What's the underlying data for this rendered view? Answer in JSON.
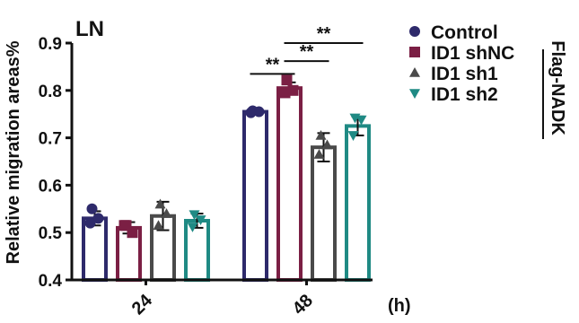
{
  "chart_data": {
    "type": "bar",
    "panel_label": "LN",
    "ylabel": "Relative migration areas%",
    "xunit": "(h)",
    "categories": [
      "24",
      "48"
    ],
    "ylim": [
      0.4,
      0.9
    ],
    "yticks": [
      "0.4",
      "0.5",
      "0.6",
      "0.7",
      "0.8",
      "0.9"
    ],
    "series": [
      {
        "name": "Control",
        "color": "#2e2a6b",
        "marker": "circle",
        "values": [
          0.53,
          0.755
        ],
        "errors": [
          0.015,
          0.003
        ],
        "points": [
          [
            0.55,
            0.53,
            0.52
          ],
          [
            0.757,
            0.755,
            0.753
          ]
        ]
      },
      {
        "name": "ID1 shNC",
        "color": "#7b1f44",
        "marker": "square",
        "values": [
          0.51,
          0.805
        ],
        "errors": [
          0.012,
          0.012
        ],
        "points": [
          [
            0.515,
            0.5,
            0.515
          ],
          [
            0.822,
            0.8,
            0.795
          ]
        ]
      },
      {
        "name": "ID1 sh1",
        "color": "#4a4a4a",
        "marker": "triangle-up",
        "values": [
          0.535,
          0.68
        ],
        "errors": [
          0.03,
          0.03
        ],
        "points": [
          [
            0.56,
            0.54,
            0.515
          ],
          [
            0.705,
            0.685,
            0.665
          ]
        ]
      },
      {
        "name": "ID1 sh2",
        "color": "#1f8a84",
        "marker": "triangle-down",
        "values": [
          0.525,
          0.725
        ],
        "errors": [
          0.015,
          0.02
        ],
        "points": [
          [
            0.538,
            0.527,
            0.512
          ],
          [
            0.742,
            0.738,
            0.705
          ]
        ]
      }
    ],
    "significance": [
      {
        "label": "**",
        "group": "48",
        "from": "Control",
        "to": "ID1 shNC",
        "y": 0.835
      },
      {
        "label": "**",
        "group": "48",
        "from": "ID1 shNC",
        "to": "ID1 sh1",
        "y": 0.862
      },
      {
        "label": "**",
        "group": "48",
        "from": "ID1 shNC",
        "to": "ID1 sh2",
        "y": 0.9
      }
    ],
    "legend_group_label": "Flag-NADK",
    "legend_position": "right",
    "grid": false
  }
}
